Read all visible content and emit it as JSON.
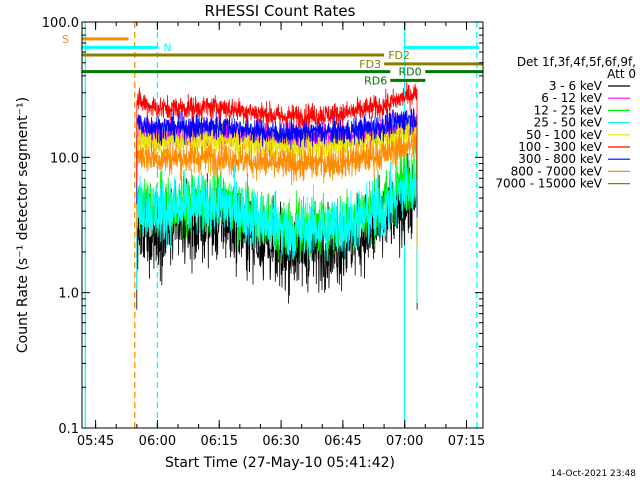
{
  "chart_data": {
    "type": "line",
    "title": "RHESSI Count Rates",
    "xlabel": "Start Time (27-May-10 05:41:42)",
    "ylabel": "Count Rate (s⁻¹ detector segment⁻¹)",
    "x_unit": "minutes",
    "xlim": [
      "05:41:42",
      "07:19:00"
    ],
    "ylim": [
      0.1,
      100
    ],
    "y_scale": "log",
    "x_ticks": [
      "05:45",
      "06:00",
      "06:15",
      "06:30",
      "06:45",
      "07:00",
      "07:15"
    ],
    "y_ticks": [
      "0.1",
      "1.0",
      "10.0",
      "100.0"
    ],
    "timestamp": "14-Oct-2021 23:48",
    "legend": {
      "placement": "right",
      "header_line1": "Det 1f,3f,4f,5f,6f,9f,",
      "header_line2": "Att 0"
    },
    "series": [
      {
        "name": "3 - 6 keV",
        "color": "#000000",
        "x": [
          "05:55",
          "06:00",
          "06:15",
          "06:30",
          "06:45",
          "06:55",
          "07:00",
          "07:03"
        ],
        "values": [
          2.9,
          2.8,
          3.4,
          2.0,
          2.2,
          3.2,
          4.5,
          5.5
        ]
      },
      {
        "name": "6 - 12 keV",
        "color": "#ff00ff",
        "x": [
          "05:55",
          "06:00",
          "06:15",
          "06:30",
          "06:45",
          "06:55",
          "07:00",
          "07:03"
        ],
        "values": [
          15.5,
          14.5,
          15,
          13.5,
          14,
          15.5,
          16.5,
          17
        ]
      },
      {
        "name": "12 - 25 keV",
        "color": "#00ee00",
        "x": [
          "05:55",
          "06:00",
          "06:15",
          "06:30",
          "06:45",
          "06:55",
          "07:00",
          "07:03"
        ],
        "values": [
          4.5,
          4.3,
          4.8,
          3.0,
          3.3,
          4.5,
          6.8,
          7.5
        ]
      },
      {
        "name": "25 - 50 keV",
        "color": "#00ffff",
        "x": [
          "05:55",
          "06:00",
          "06:15",
          "06:30",
          "06:45",
          "06:55",
          "07:00",
          "07:03"
        ],
        "values": [
          4.2,
          4.0,
          4.5,
          2.9,
          3.1,
          4.1,
          5.8,
          6.5
        ]
      },
      {
        "name": "50 - 100 keV",
        "color": "#e8e800",
        "x": [
          "05:55",
          "06:00",
          "06:15",
          "06:30",
          "06:45",
          "06:55",
          "07:00",
          "07:03"
        ],
        "values": [
          14,
          13,
          13.5,
          12,
          12.5,
          14,
          15,
          15.5
        ]
      },
      {
        "name": "100 - 300 keV",
        "color": "#ff0000",
        "x": [
          "05:55",
          "06:00",
          "06:15",
          "06:30",
          "06:45",
          "06:55",
          "07:00",
          "07:03"
        ],
        "values": [
          26,
          23,
          23.5,
          20,
          21,
          24,
          28,
          30
        ]
      },
      {
        "name": "300 - 800 keV",
        "color": "#0000ff",
        "x": [
          "05:55",
          "06:00",
          "06:15",
          "06:30",
          "06:45",
          "06:55",
          "07:00",
          "07:03"
        ],
        "values": [
          18,
          16.5,
          17,
          15,
          15.5,
          17,
          19,
          20
        ]
      },
      {
        "name": "800 - 7000 keV",
        "color": "#ff8c00",
        "x": [
          "05:55",
          "06:00",
          "06:15",
          "06:30",
          "06:45",
          "06:55",
          "07:00",
          "07:03"
        ],
        "values": [
          10.5,
          9.8,
          10,
          8.8,
          9.2,
          10.5,
          12,
          12.5
        ]
      },
      {
        "name": "7000 - 15000 keV",
        "color": "#8b7d00",
        "values": []
      }
    ],
    "annotations": [
      {
        "label": "S",
        "color": "#ff8c00",
        "start": "05:41:42",
        "end": "05:53:00",
        "level": 75
      },
      {
        "label": "N",
        "color": "#00ffff",
        "start": "05:41:42",
        "end": "06:00:00",
        "level": 65
      },
      {
        "label": "N",
        "color": "#00ffff",
        "start": "07:00:00",
        "end": "07:18:00",
        "level": 65
      },
      {
        "label": "FD2",
        "color": "#8b7d00",
        "start": "05:41:42",
        "end": "06:55:00",
        "level": 57
      },
      {
        "label": "FD3",
        "color": "#8b7d00",
        "start": "06:55:00",
        "end": "07:19:00",
        "level": 49
      },
      {
        "label": "RD0",
        "color": "#007700",
        "start": "05:41:42",
        "end": "06:56:30",
        "level": 43
      },
      {
        "label": "RD0",
        "color": "#007700",
        "start": "07:05:00",
        "end": "07:19:00",
        "level": 43
      },
      {
        "label": "RD6",
        "color": "#007700",
        "start": "06:56:30",
        "end": "07:05:00",
        "level": 37
      }
    ],
    "vlines": [
      {
        "time": "05:42:30",
        "color": "#00ffff",
        "style": "solid"
      },
      {
        "time": "05:54:30",
        "color": "#ff8c00",
        "style": "dashed"
      },
      {
        "time": "06:00:00",
        "color": "#00ffff",
        "style": "dashed"
      },
      {
        "time": "07:00:00",
        "color": "#00ffff",
        "style": "solid"
      },
      {
        "time": "07:17:30",
        "color": "#00ffff",
        "style": "dashed"
      }
    ]
  }
}
